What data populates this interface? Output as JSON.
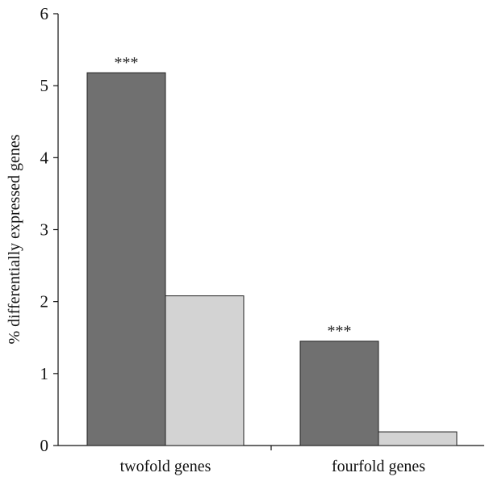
{
  "chart_data": {
    "type": "bar",
    "title": "",
    "xlabel": "",
    "ylabel": "% differentially expressed genes",
    "categories": [
      "twofold genes",
      "fourfold genes"
    ],
    "series": [
      {
        "values": [
          5.18,
          1.45
        ],
        "color": "#707070"
      },
      {
        "values": [
          2.08,
          0.19
        ],
        "color": "#d3d3d3"
      }
    ],
    "annotations": [
      "***",
      "***"
    ],
    "ylim": [
      0,
      6
    ],
    "yticks": [
      0,
      1,
      2,
      3,
      4,
      5,
      6
    ],
    "grid": false,
    "legend": "none"
  }
}
